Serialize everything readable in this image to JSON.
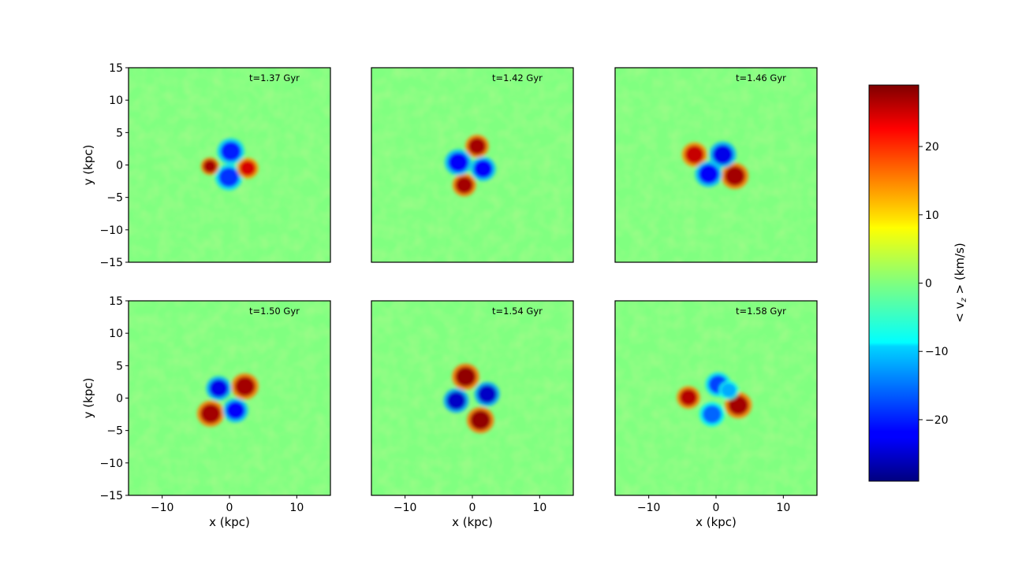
{
  "chart_data": {
    "type": "heatmap",
    "colormap": "jet",
    "panels": [
      {
        "label": "t=1.37 Gyr",
        "features": [
          {
            "x": 0.2,
            "y": 2.1,
            "v": -20,
            "r": 1.5
          },
          {
            "x": -0.1,
            "y": -1.9,
            "v": -19,
            "r": 1.5
          },
          {
            "x": -2.9,
            "y": -0.2,
            "v": 27,
            "r": 1.0
          },
          {
            "x": 2.7,
            "y": -0.5,
            "v": 24,
            "r": 1.2
          }
        ]
      },
      {
        "label": "t=1.42 Gyr",
        "features": [
          {
            "x": 0.7,
            "y": 2.9,
            "v": 27,
            "r": 1.3
          },
          {
            "x": -1.2,
            "y": -3.1,
            "v": 27,
            "r": 1.3
          },
          {
            "x": -2.1,
            "y": 0.4,
            "v": -22,
            "r": 1.5
          },
          {
            "x": 1.6,
            "y": -0.6,
            "v": -22,
            "r": 1.4
          }
        ]
      },
      {
        "label": "t=1.46 Gyr",
        "features": [
          {
            "x": -3.2,
            "y": 1.6,
            "v": 25,
            "r": 1.4
          },
          {
            "x": 2.8,
            "y": -1.7,
            "v": 27,
            "r": 1.5
          },
          {
            "x": 1.0,
            "y": 1.6,
            "v": -23,
            "r": 1.5
          },
          {
            "x": -1.1,
            "y": -1.4,
            "v": -22,
            "r": 1.5
          }
        ]
      },
      {
        "label": "t=1.50 Gyr",
        "features": [
          {
            "x": 2.3,
            "y": 1.8,
            "v": 27,
            "r": 1.5
          },
          {
            "x": -2.8,
            "y": -2.4,
            "v": 27,
            "r": 1.5
          },
          {
            "x": -1.6,
            "y": 1.5,
            "v": -23,
            "r": 1.4
          },
          {
            "x": 0.9,
            "y": -1.9,
            "v": -22,
            "r": 1.4
          }
        ]
      },
      {
        "label": "t=1.54 Gyr",
        "features": [
          {
            "x": -1.0,
            "y": 3.3,
            "v": 28,
            "r": 1.5
          },
          {
            "x": 1.2,
            "y": -3.4,
            "v": 28,
            "r": 1.5
          },
          {
            "x": -2.4,
            "y": -0.4,
            "v": -25,
            "r": 1.4
          },
          {
            "x": 2.2,
            "y": 0.6,
            "v": -25,
            "r": 1.4
          }
        ]
      },
      {
        "label": "t=1.58 Gyr",
        "features": [
          {
            "x": -4.1,
            "y": 0.1,
            "v": 26,
            "r": 1.3
          },
          {
            "x": 3.3,
            "y": -1.1,
            "v": 27,
            "r": 1.5
          },
          {
            "x": 0.3,
            "y": 2.1,
            "v": -18,
            "r": 1.4
          },
          {
            "x": -0.6,
            "y": -2.5,
            "v": -16,
            "r": 1.4
          },
          {
            "x": 1.9,
            "y": 1.2,
            "v": -12,
            "r": 1.1
          }
        ]
      }
    ],
    "x_range": [
      -15,
      15
    ],
    "y_range": [
      -15,
      15
    ],
    "x_ticks": [
      -10,
      0,
      10
    ],
    "y_ticks": [
      -15,
      -10,
      -5,
      0,
      5,
      10,
      15
    ],
    "x_tick_labels": [
      "−10",
      "0",
      "10"
    ],
    "y_tick_labels": [
      "−15",
      "−10",
      "−5",
      "0",
      "5",
      "10",
      "15"
    ],
    "xlabel": "x (kpc)",
    "ylabel": "y (kpc)",
    "colorbar": {
      "label": "< v",
      "label_subscript": "z",
      "label_suffix": " >  (km/s)",
      "range": [
        -29,
        29
      ],
      "ticks": [
        -20,
        -10,
        0,
        10,
        20
      ],
      "tick_labels": [
        "−20",
        "−10",
        "0",
        "10",
        "20"
      ]
    }
  }
}
